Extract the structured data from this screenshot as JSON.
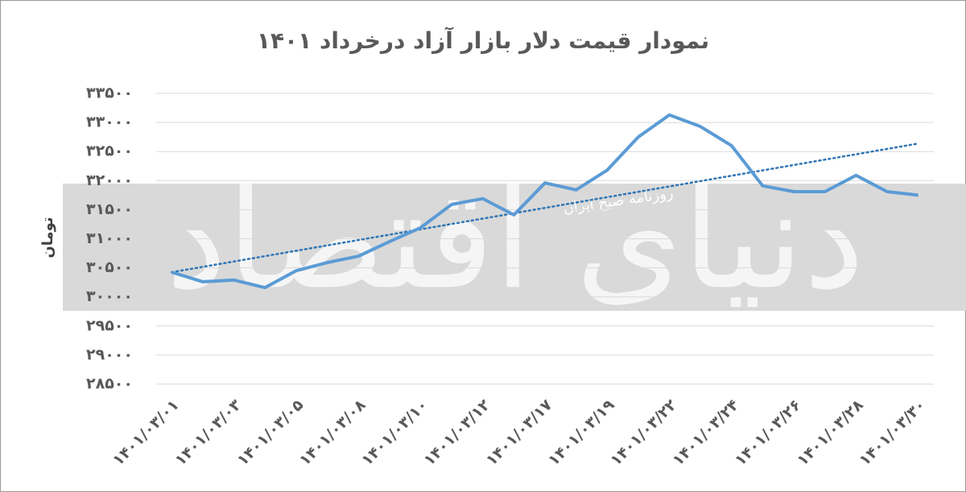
{
  "chart_data": {
    "type": "line",
    "title": "نمودار قیمت دلار بازار آزاد درخرداد ۱۴۰۱",
    "y_label": "تومان",
    "watermark": "دنیای اقتصاد",
    "watermark_subtitle": "روزنامه صبح ایران",
    "categories": [
      "۱۴۰۱/۰۳/۰۱",
      null,
      "۱۴۰۱/۰۳/۰۳",
      null,
      "۱۴۰۱/۰۳/۰۵",
      null,
      "۱۴۰۱/۰۳/۰۸",
      null,
      "۱۴۰۱/۰۳/۱۰",
      null,
      "۱۴۰۱/۰۳/۱۲",
      null,
      "۱۴۰۱/۰۳/۱۷",
      null,
      "۱۴۰۱/۰۳/۱۹",
      null,
      "۱۴۰۱/۰۳/۲۲",
      null,
      "۱۴۰۱/۰۳/۲۴",
      null,
      "۱۴۰۱/۰۳/۲۶",
      null,
      "۱۴۰۱/۰۳/۲۸",
      null,
      "۱۴۰۱/۰۳/۳۰"
    ],
    "values": [
      30425,
      30260,
      30290,
      30160,
      30450,
      30590,
      30700,
      30950,
      31190,
      31590,
      31690,
      31410,
      31960,
      31840,
      32180,
      32750,
      33130,
      32930,
      32600,
      31910,
      31810,
      31810,
      32090,
      31810,
      31750
    ],
    "color": "#5b9bd5",
    "trendline": true,
    "trendline_color": "#2e75b6",
    "ylim": [
      28500,
      33500
    ],
    "yticks": [
      {
        "value": 28500,
        "label": "۲۸۵۰۰"
      },
      {
        "value": 29000,
        "label": "۲۹۰۰۰"
      },
      {
        "value": 29500,
        "label": "۲۹۵۰۰"
      },
      {
        "value": 30000,
        "label": "۳۰۰۰۰"
      },
      {
        "value": 30500,
        "label": "۳۰۵۰۰"
      },
      {
        "value": 31000,
        "label": "۳۱۰۰۰"
      },
      {
        "value": 31500,
        "label": "۳۱۵۰۰"
      },
      {
        "value": 32000,
        "label": "۳۲۰۰۰"
      },
      {
        "value": 32500,
        "label": "۳۲۵۰۰"
      },
      {
        "value": 33000,
        "label": "۳۳۰۰۰"
      },
      {
        "value": 33500,
        "label": "۳۳۵۰۰"
      }
    ],
    "grid": true
  }
}
